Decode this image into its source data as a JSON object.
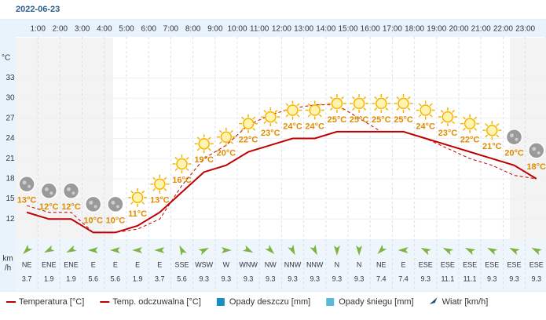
{
  "chart_data": {
    "type": "line",
    "title": "2022-06-23",
    "hour_labels": [
      "1:00",
      "2:00",
      "3:00",
      "4:00",
      "5:00",
      "6:00",
      "7:00",
      "8:00",
      "9:00",
      "10:00",
      "11:00",
      "12:00",
      "13:00",
      "14:00",
      "15:00",
      "16:00",
      "17:00",
      "18:00",
      "19:00",
      "20:00",
      "21:00",
      "22:00",
      "23:00"
    ],
    "y_unit": "°C",
    "ylim": [
      9,
      39
    ],
    "yticks": [
      12,
      15,
      18,
      21,
      24,
      27,
      30,
      33
    ],
    "grid": true,
    "series": [
      {
        "name": "Temperatura [°C]",
        "color": "#c00000",
        "values": [
          13,
          12,
          12,
          10,
          10,
          11,
          13,
          16,
          19,
          20,
          22,
          23,
          24,
          24,
          25,
          25,
          25,
          25,
          24,
          23,
          22,
          21,
          20,
          18
        ],
        "value_labels": [
          "13°C",
          "12°C",
          "12°C",
          "10°C",
          "10°C",
          "11°C",
          "13°C",
          "16°C",
          "19°C",
          "20°C",
          "22°C",
          "23°C",
          "24°C",
          "24°C",
          "25°C",
          "25°C",
          "25°C",
          "25°C",
          "24°C",
          "23°C",
          "22°C",
          "21°C",
          "20°C",
          "18°C"
        ]
      },
      {
        "name": "Temp. odczuwalna [°C]",
        "color": "#c00000",
        "values": [
          14,
          13,
          13,
          10,
          10,
          10.5,
          12,
          17,
          21,
          23,
          26,
          27.5,
          28.5,
          29,
          29,
          27,
          25,
          25,
          24,
          22.5,
          21,
          20,
          18.5,
          18
        ]
      }
    ],
    "precip_legend": [
      {
        "name": "Opady deszczu [mm]",
        "color": "#1a8fc0"
      },
      {
        "name": "Opady śniegu [mm]",
        "color": "#5bb8d8"
      }
    ],
    "wind": {
      "name": "Wiatr [km/h]",
      "unit_lines": [
        "km",
        "/h"
      ],
      "directions": [
        "NE",
        "ENE",
        "ENE",
        "E",
        "E",
        "E",
        "E",
        "SSE",
        "WSW",
        "W",
        "WNW",
        "NW",
        "NNW",
        "NNW",
        "N",
        "N",
        "NE",
        "E",
        "ESE",
        "ESE",
        "ESE",
        "ESE",
        "ESE",
        "ESE"
      ],
      "values": [
        3.7,
        1.9,
        1.9,
        5.6,
        5.6,
        1.9,
        3.7,
        5.6,
        9.3,
        9.3,
        9.3,
        9.3,
        9.3,
        9.3,
        9.3,
        9.3,
        7.4,
        7.4,
        9.3,
        11.1,
        11.1,
        9.3,
        9.3,
        9.3
      ]
    }
  }
}
